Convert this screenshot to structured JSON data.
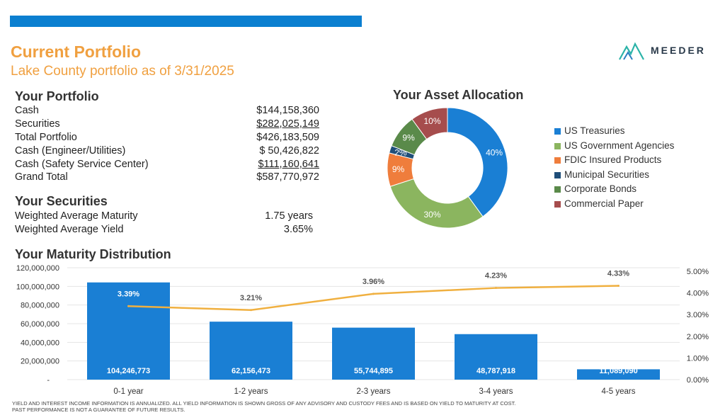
{
  "header": {
    "title": "Current Portfolio",
    "subtitle": "Lake County portfolio as of 3/31/2025",
    "logo_text": "MEEDER",
    "bar_color": "#0b7fd0"
  },
  "portfolio": {
    "heading": "Your Portfolio",
    "rows": [
      {
        "label": "Cash",
        "value": "$144,158,360"
      },
      {
        "label": "Securities",
        "value": "$282,025,149"
      },
      {
        "label": "Total Portfolio",
        "value": "$426,183,509"
      },
      {
        "label": "Cash (Engineer/Utilities)",
        "value": "$ 50,426,822"
      },
      {
        "label": "Cash (Safety Service Center)",
        "value": "$111,160,641"
      },
      {
        "label": "Grand Total",
        "value": "$587,770,972"
      }
    ]
  },
  "securities": {
    "heading": "Your Securities",
    "rows": [
      {
        "label": "Weighted Average Maturity",
        "value": "1.75 years"
      },
      {
        "label": "Weighted Average Yield",
        "value": "3.65%"
      }
    ]
  },
  "allocation": {
    "heading": "Your Asset Allocation"
  },
  "maturity": {
    "heading": "Your Maturity Distribution"
  },
  "footnote": {
    "line1": "YIELD AND INTEREST INCOME INFORMATION IS ANNUALIZED. ALL YIELD INFORMATION IS SHOWN GROSS OF ANY ADVISORY AND CUSTODY FEES AND IS BASED ON YIELD TO MATURITY AT COST.",
    "line2": "PAST PERFORMANCE IS NOT A GUARANTEE OF FUTURE RESULTS."
  },
  "chart_data": [
    {
      "type": "pie",
      "title": "Your Asset Allocation",
      "categories": [
        "US Treasuries",
        "US Government Agencies",
        "FDIC Insured Products",
        "Municipal Securities",
        "Corporate Bonds",
        "Commercial Paper"
      ],
      "values": [
        40,
        30,
        9,
        2,
        9,
        10
      ],
      "labels": [
        "40%",
        "30%",
        "9%",
        "2%",
        "9%",
        "10%"
      ],
      "colors": [
        "#1a7fd4",
        "#8bb55f",
        "#ef7d3c",
        "#1f4e79",
        "#5a8a4a",
        "#a64d4d"
      ],
      "legend": "right"
    },
    {
      "type": "bar",
      "title": "Your Maturity Distribution",
      "categories": [
        "0-1 year",
        "1-2 years",
        "2-3 years",
        "3-4 years",
        "4-5 years"
      ],
      "series": [
        {
          "type": "bar",
          "values": [
            104246773,
            62156473,
            55744895,
            48787918,
            11089090
          ],
          "labels": [
            "104,246,773",
            "62,156,473",
            "55,744,895",
            "48,787,918",
            "11,089,090"
          ],
          "color": "#1a7fd4"
        },
        {
          "type": "line",
          "axis": "right",
          "values": [
            3.39,
            3.21,
            3.96,
            4.23,
            4.33
          ],
          "labels": [
            "3.39%",
            "3.21%",
            "3.96%",
            "4.23%",
            "4.33%"
          ],
          "color": "#f0b040"
        }
      ],
      "ylim": [
        0,
        120000000
      ],
      "y_ticks": [
        "-",
        "20,000,000",
        "40,000,000",
        "60,000,000",
        "80,000,000",
        "100,000,000",
        "120,000,000"
      ],
      "y2lim": [
        0,
        5
      ],
      "y2_ticks": [
        "0.00%",
        "1.00%",
        "2.00%",
        "3.00%",
        "4.00%",
        "5.00%"
      ],
      "grid": true
    }
  ]
}
